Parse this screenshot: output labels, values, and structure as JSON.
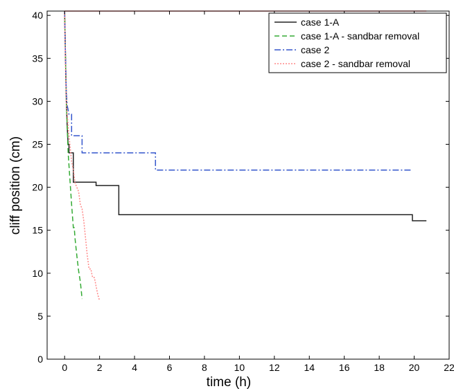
{
  "chart_data": {
    "type": "line",
    "xlabel": "time (h)",
    "ylabel": "cliff position (cm)",
    "xlim": [
      -1,
      22
    ],
    "ylim": [
      0,
      40.5
    ],
    "xticks": [
      0,
      2,
      4,
      6,
      8,
      10,
      12,
      14,
      16,
      18,
      20,
      22
    ],
    "yticks": [
      0,
      5,
      10,
      15,
      20,
      25,
      30,
      35,
      40
    ],
    "grid": false,
    "legend_position": "top-right",
    "series": [
      {
        "name": "case 1-A",
        "color": "#222222",
        "style": "solid",
        "x": [
          0,
          0.05,
          0.1,
          0.15,
          0.2,
          0.25,
          0.25,
          0.5,
          0.5,
          1.8,
          1.8,
          3.1,
          3.1,
          19.9,
          19.9,
          20.7
        ],
        "y": [
          40.5,
          35,
          30,
          27,
          25,
          25,
          24,
          24,
          20.6,
          20.6,
          20.2,
          20.2,
          16.8,
          16.8,
          16.1,
          16.1
        ]
      },
      {
        "name": "case 1-A - sandbar removal",
        "color": "#33aa33",
        "style": "dashed",
        "x": [
          0,
          0.1,
          0.2,
          0.3,
          0.4,
          0.5,
          0.55,
          0.6,
          0.7,
          0.8,
          0.9,
          0.95,
          1.0
        ],
        "y": [
          40.5,
          30,
          24,
          21,
          18,
          15.3,
          15.3,
          14,
          12,
          10.3,
          9,
          8,
          7
        ]
      },
      {
        "name": "case 2",
        "color": "#3355cc",
        "style": "dashdot",
        "x": [
          0,
          0.05,
          0.1,
          0.15,
          0.2,
          0.25,
          0.25,
          0.4,
          0.4,
          1.0,
          1.0,
          5.2,
          5.2,
          19.9
        ],
        "y": [
          40.5,
          35,
          31,
          29.5,
          29,
          28.5,
          28.5,
          28.5,
          26,
          26,
          24,
          24,
          22,
          22
        ]
      },
      {
        "name": "case 2 - sandbar removal",
        "color": "#ff8888",
        "style": "dotted",
        "x": [
          0,
          0.05,
          0.1,
          0.2,
          0.3,
          0.4,
          0.5,
          0.6,
          0.8,
          0.9,
          1.0,
          1.1,
          1.2,
          1.3,
          1.4,
          1.5,
          1.6,
          1.7,
          1.8,
          1.9,
          2.0
        ],
        "y": [
          40.5,
          34,
          30,
          27,
          25,
          23,
          22,
          20.5,
          19.5,
          18,
          17.5,
          16,
          14,
          12,
          10.5,
          10.5,
          9.5,
          9.5,
          8.5,
          7.5,
          6.8
        ]
      }
    ],
    "top_line": {
      "color": "#ff8888",
      "x": [
        0,
        20.7
      ],
      "y": [
        40.5,
        40.5
      ]
    }
  }
}
